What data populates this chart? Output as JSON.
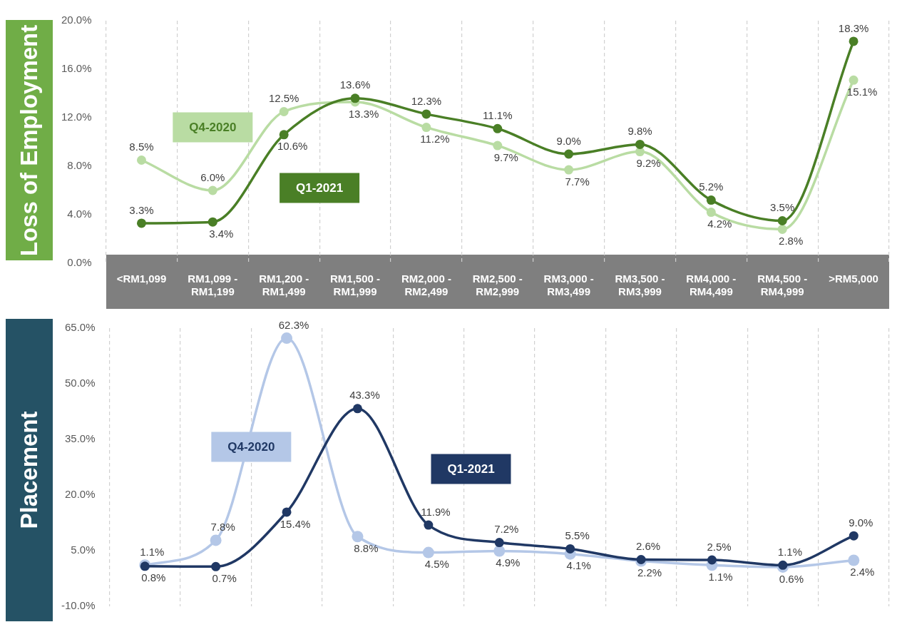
{
  "chart_data": [
    {
      "type": "line",
      "ylabel": "Loss of Employment",
      "categories": [
        "<RM1,099",
        "RM1,099 - RM1,199",
        "RM1,200 - RM1,499",
        "RM1,500 - RM1,999",
        "RM2,000 - RM2,499",
        "RM2,500 - RM2,999",
        "RM3,000 - RM3,499",
        "RM3,500 - RM3,999",
        "RM4,000 - RM4,499",
        "RM4,500 - RM4,999",
        ">RM5,000"
      ],
      "series": [
        {
          "name": "Q4-2020",
          "color": "#b9dca3",
          "values": [
            8.5,
            6.0,
            12.5,
            13.3,
            11.2,
            9.7,
            7.7,
            9.2,
            4.2,
            2.8,
            15.1
          ],
          "value_labels": [
            "8.5%",
            "6.0%",
            "12.5%",
            "13.3%",
            "11.2%",
            "9.7%",
            "7.7%",
            "9.2%",
            "4.2%",
            "2.8%",
            "15.1%"
          ]
        },
        {
          "name": "Q1-2021",
          "color": "#4a7f26",
          "values": [
            3.3,
            3.4,
            10.6,
            13.6,
            12.3,
            11.1,
            9.0,
            9.8,
            5.2,
            3.5,
            18.3
          ],
          "value_labels": [
            "3.3%",
            "3.4%",
            "10.6%",
            "13.6%",
            "12.3%",
            "11.1%",
            "9.0%",
            "9.8%",
            "5.2%",
            "3.5%",
            "18.3%"
          ]
        }
      ],
      "ylim": [
        0,
        20
      ],
      "yticks": [
        {
          "value": 0,
          "label": "0.0%"
        },
        {
          "value": 4,
          "label": "4.0%"
        },
        {
          "value": 8,
          "label": "8.0%"
        },
        {
          "value": 12,
          "label": "12.0%"
        },
        {
          "value": 16,
          "label": "16.0%"
        },
        {
          "value": 20,
          "label": "20.0%"
        }
      ],
      "grid": "x",
      "marker": "circle",
      "legend": false
    },
    {
      "type": "line",
      "ylabel": "Placement",
      "categories": [
        null,
        null,
        null,
        null,
        null,
        null,
        null,
        null,
        null,
        null,
        null
      ],
      "series": [
        {
          "name": "Q4-2020",
          "color": "#b4c7e7",
          "values": [
            1.1,
            7.8,
            62.3,
            8.8,
            4.5,
            4.9,
            4.1,
            2.2,
            1.1,
            0.6,
            2.4
          ],
          "value_labels": [
            "1.1%",
            "7.8%",
            "62.3%",
            "8.8%",
            "4.5%",
            "4.9%",
            "4.1%",
            "2.2%",
            "1.1%",
            "0.6%",
            "2.4%"
          ]
        },
        {
          "name": "Q1-2021",
          "color": "#203864",
          "values": [
            0.8,
            0.7,
            15.4,
            43.3,
            11.9,
            7.2,
            5.5,
            2.6,
            2.5,
            1.1,
            9.0
          ],
          "value_labels": [
            "0.8%",
            "0.7%",
            "15.4%",
            "43.3%",
            "11.9%",
            "7.2%",
            "5.5%",
            "2.6%",
            "2.5%",
            "1.1%",
            "9.0%"
          ]
        }
      ],
      "ylim": [
        -10,
        65
      ],
      "yticks": [
        {
          "value": -10,
          "label": "-10.0%"
        },
        {
          "value": 5,
          "label": "5.0%"
        },
        {
          "value": 20,
          "label": "20.0%"
        },
        {
          "value": 35,
          "label": "35.0%"
        },
        {
          "value": 50,
          "label": "50.0%"
        },
        {
          "value": 65,
          "label": "65.0%"
        }
      ],
      "grid": "x",
      "marker": "circle",
      "legend": false,
      "tick_labels": "y"
    }
  ]
}
